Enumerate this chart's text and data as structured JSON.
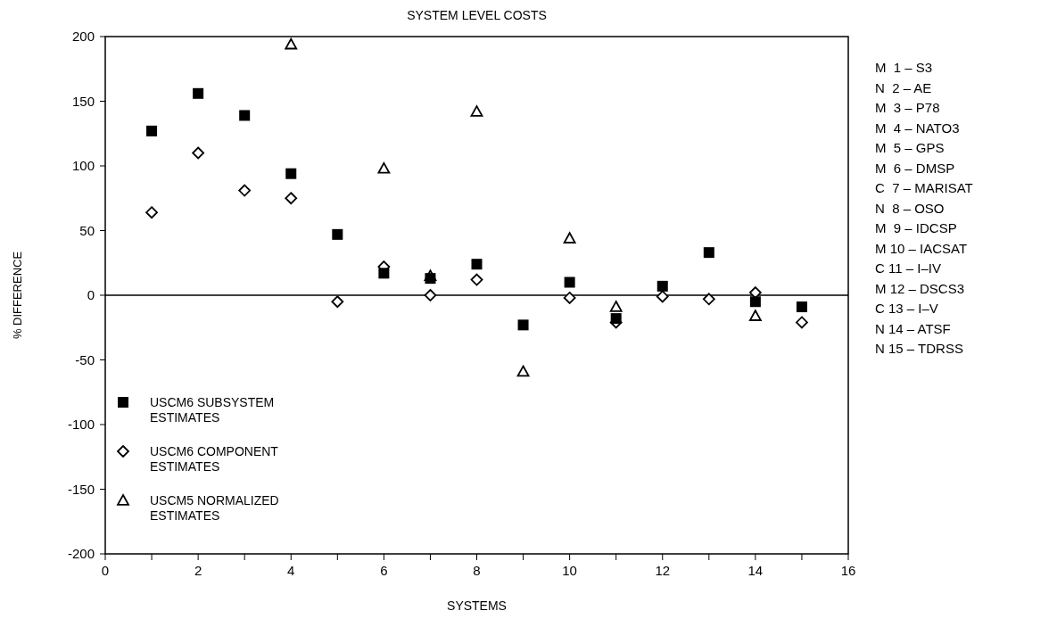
{
  "chart_data": {
    "type": "scatter",
    "title": "SYSTEM LEVEL COSTS",
    "xlabel": "SYSTEMS",
    "ylabel": "% DIFFERENCE",
    "x": [
      1,
      2,
      3,
      4,
      5,
      6,
      7,
      8,
      9,
      10,
      11,
      12,
      13,
      14,
      15
    ],
    "series": [
      {
        "name": "USCM6 SUBSYSTEM ESTIMATES",
        "color": "#000000",
        "marker": "square",
        "values": [
          127,
          156,
          139,
          94,
          47,
          17,
          13,
          24,
          -23,
          10,
          -18,
          7,
          33,
          -5,
          -9
        ]
      },
      {
        "name": "USCM6 COMPONENT ESTIMATES",
        "color": "#000000",
        "marker": "diamond",
        "values": [
          64,
          110,
          81,
          75,
          -5,
          22,
          0,
          12,
          null,
          -2,
          -21,
          -1,
          -3,
          2,
          -21
        ]
      },
      {
        "name": "USCM5 NORMALIZED ESTIMATES",
        "color": "#000000",
        "marker": "triangle",
        "values": [
          null,
          null,
          null,
          194,
          null,
          98,
          15,
          142,
          -59,
          44,
          -9,
          null,
          null,
          -16,
          null
        ]
      }
    ],
    "xlim": [
      0,
      16
    ],
    "xticks": [
      0,
      {
        "value": 1,
        "label": null
      },
      2,
      {
        "value": 3,
        "label": null
      },
      4,
      {
        "value": 5,
        "label": null
      },
      6,
      {
        "value": 7,
        "label": null
      },
      8,
      {
        "value": 9,
        "label": null
      },
      10,
      {
        "value": 11,
        "label": null
      },
      12,
      {
        "value": 13,
        "label": null
      },
      14,
      {
        "value": 15,
        "label": null
      },
      16
    ],
    "ylim": [
      -200,
      200
    ],
    "yticks": [
      -200,
      -150,
      -100,
      -50,
      0,
      50,
      100,
      150,
      200
    ],
    "ref_lines": [
      {
        "axis": "y",
        "value": 0
      }
    ],
    "legend": "bottom left",
    "grid": false,
    "annotations": [
      "M  1 – S3",
      "N  2 – AE",
      "M  3 – P78",
      "M  4 – NATO3",
      "M  5 – GPS",
      "M  6 – DMSP",
      "C  7 – MARISAT",
      "N  8 – OSO",
      "M  9 – IDCSP",
      "M 10 – IACSAT",
      "C 11 – I–IV",
      "M 12 – DSCS3",
      "C 13 – I–V",
      "N 14 – ATSF",
      "N 15 – TDRSS"
    ]
  }
}
